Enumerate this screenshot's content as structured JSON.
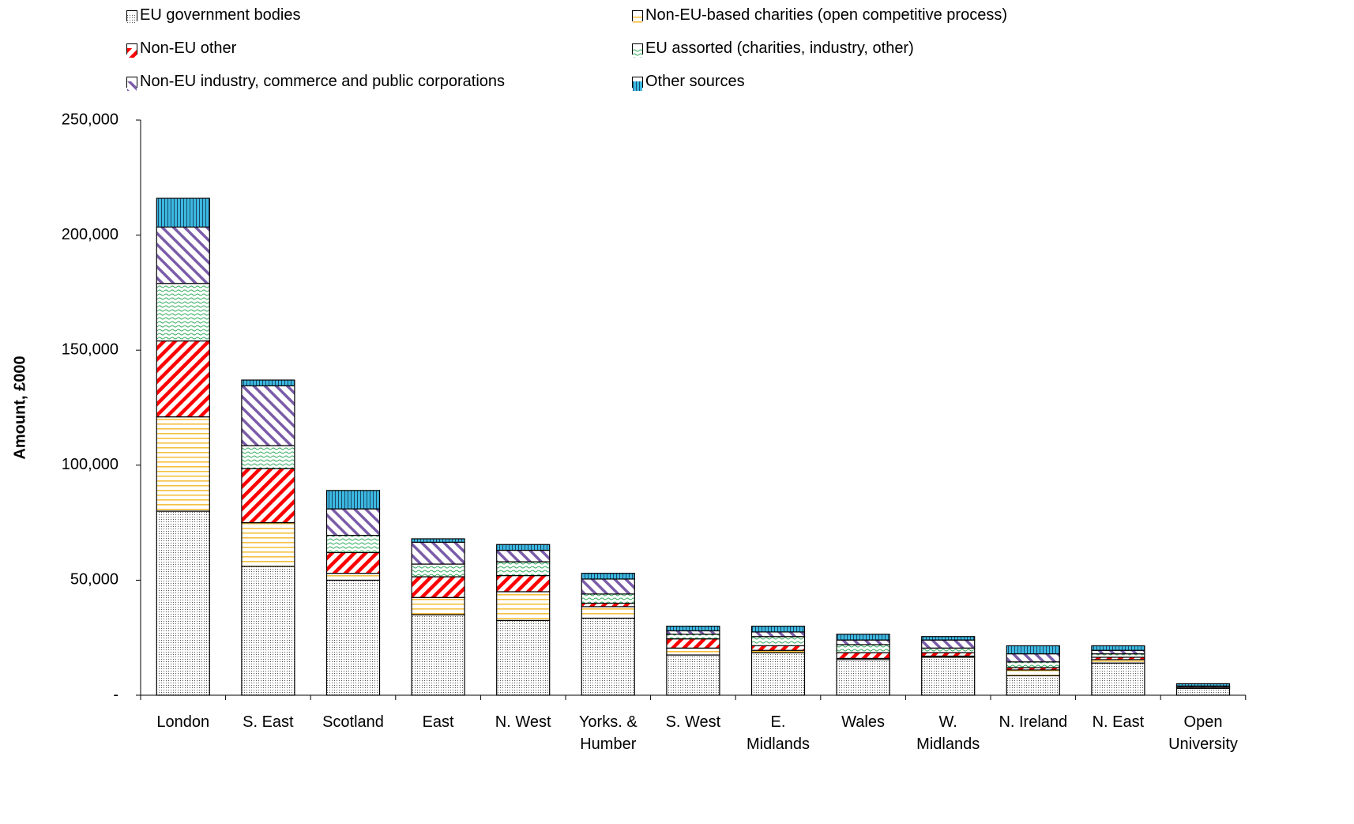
{
  "chart_data": {
    "type": "stacked_bar",
    "y_label": "Amount, £000",
    "categories": [
      "London",
      "S. East",
      "Scotland",
      "East",
      "N. West",
      "Yorks. & Humber",
      "S. West",
      "E. Midlands",
      "Wales",
      "W. Midlands",
      "N. Ireland",
      "N. East",
      "Open University"
    ],
    "series": [
      {
        "name": "EU government  bodies",
        "color": "#555555",
        "pattern": "dots",
        "values": [
          80000,
          56000,
          50000,
          35000,
          32500,
          33500,
          17500,
          18500,
          15500,
          16500,
          8500,
          14000,
          3000
        ]
      },
      {
        "name": "Non-EU-based charities (open competitive process)",
        "color": "#f5c040",
        "pattern": "hlines",
        "values": [
          41000,
          19000,
          3000,
          7500,
          12500,
          5000,
          3000,
          1000,
          500,
          500,
          2500,
          1500,
          0
        ]
      },
      {
        "name": "Non-EU other",
        "color": "#ff0000",
        "pattern": "diag",
        "values": [
          33000,
          23500,
          9000,
          9000,
          7000,
          1500,
          4000,
          2000,
          2500,
          1500,
          1000,
          1000,
          0
        ]
      },
      {
        "name": "EU assorted (charities, industry,  other)",
        "color": "#2eaa5a",
        "pattern": "waves",
        "values": [
          25000,
          10000,
          7500,
          5500,
          6000,
          4000,
          2000,
          4000,
          3500,
          2000,
          2500,
          1500,
          500
        ]
      },
      {
        "name": "Non-EU industry,  commerce and public corporations",
        "color": "#7a5ca8",
        "pattern": "antidiag",
        "values": [
          24500,
          26000,
          11500,
          9500,
          5000,
          6500,
          1500,
          2000,
          2000,
          3500,
          3500,
          1500,
          500
        ]
      },
      {
        "name": "Other sources",
        "color": "#3cb8e0",
        "pattern": "vlines",
        "values": [
          12500,
          2500,
          8000,
          1500,
          2500,
          2500,
          2000,
          2500,
          2500,
          1500,
          3500,
          2000,
          1000
        ]
      }
    ],
    "ylim": [
      0,
      250000
    ],
    "yticks": [
      {
        "value": 0,
        "label": "-"
      },
      {
        "value": 50000,
        "label": "50,000"
      },
      {
        "value": 100000,
        "label": "100,000"
      },
      {
        "value": 150000,
        "label": "150,000"
      },
      {
        "value": 200000,
        "label": "200,000"
      },
      {
        "value": 250000,
        "label": "250,000"
      }
    ]
  }
}
